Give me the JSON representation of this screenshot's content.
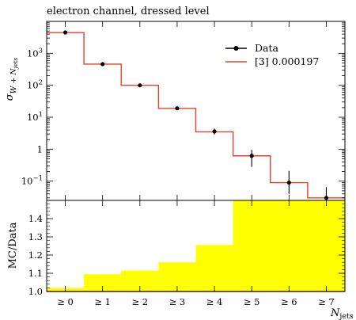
{
  "title": "electron channel, dressed level",
  "chart_data": [
    {
      "panel": "main",
      "type": "line",
      "ylabel_symbol": "σ",
      "ylabel_subscript": "W + N",
      "ylabel_subsubscript": "jets",
      "yscale": "log",
      "ylim": [
        0.025,
        10000
      ],
      "ytick_labels": [
        {
          "value": 0.1,
          "base": "10",
          "exp": "−1"
        },
        {
          "value": 1,
          "base": "1",
          "exp": ""
        },
        {
          "value": 10,
          "base": "10",
          "exp": "1"
        },
        {
          "value": 100,
          "base": "10",
          "exp": "2"
        },
        {
          "value": 1000,
          "base": "10",
          "exp": "3"
        }
      ],
      "categories": [
        "≥ 0",
        "≥ 1",
        "≥ 2",
        "≥ 3",
        "≥ 4",
        "≥ 5",
        "≥ 6",
        "≥ 7"
      ],
      "series": [
        {
          "name": "Data",
          "style": "points-with-errors",
          "color": "#000000",
          "values": [
            4500,
            460,
            100,
            19,
            3.6,
            0.62,
            0.09,
            0.03
          ],
          "err_low": [
            4300,
            440,
            95,
            17.5,
            2.9,
            0.28,
            0.04,
            0.02
          ],
          "err_high": [
            4700,
            480,
            105,
            21,
            4.4,
            0.95,
            0.21,
            0.065
          ]
        },
        {
          "name": "[3] 0.000197",
          "style": "step",
          "color": "#e8402a",
          "values": [
            4450,
            460,
            100,
            19,
            3.5,
            0.62,
            0.09,
            0.03
          ]
        }
      ],
      "legend_position": "top-right"
    },
    {
      "panel": "ratio",
      "type": "area",
      "ylabel": "MC/Data",
      "ylim": [
        1.0,
        1.5
      ],
      "ytick_labels": [
        "1.0",
        "1.1",
        "1.2",
        "1.3",
        "1.4"
      ],
      "yticks": [
        1.0,
        1.1,
        1.2,
        1.3,
        1.4
      ],
      "categories": [
        "≥ 0",
        "≥ 1",
        "≥ 2",
        "≥ 3",
        "≥ 4",
        "≥ 5",
        "≥ 6",
        "≥ 7"
      ],
      "xlabel": "N",
      "xlabel_subscript": "jets",
      "band_color": "#ffff00",
      "reference_color": "#e8402a",
      "band_upper": [
        1.02,
        1.095,
        1.115,
        1.16,
        1.255,
        1.5,
        1.5,
        1.5
      ],
      "band_lower": [
        1.0,
        1.0,
        1.0,
        1.0,
        1.0,
        1.0,
        1.0,
        1.0
      ]
    }
  ]
}
